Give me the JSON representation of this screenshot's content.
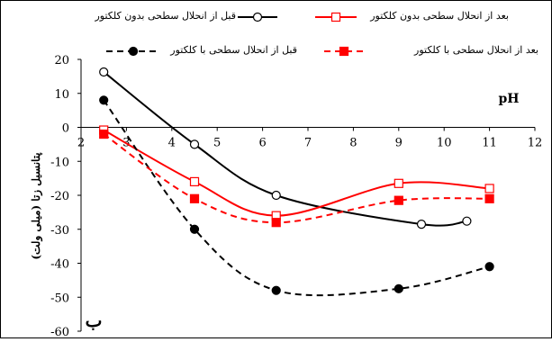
{
  "chart_data": {
    "type": "line",
    "ylabel": "پتانسیل زتا (میلی ولت)",
    "x_unit_label": "pH",
    "panel_label": "ب",
    "xlim": [
      2,
      12
    ],
    "ylim": [
      -60,
      20
    ],
    "x_ticks": [
      "2",
      "3",
      "4",
      "5",
      "6",
      "7",
      "8",
      "9",
      "10",
      "11",
      "12"
    ],
    "y_ticks": [
      "20",
      "10",
      "0",
      "-10",
      "-20",
      "-30",
      "-40",
      "-50",
      "-60"
    ],
    "grid": false,
    "legend_position": "top",
    "series": [
      {
        "name": "قبل از انحلال سطحی بدون کلکتور",
        "color": "#000000",
        "dash": "solid",
        "marker": "circle-open",
        "x": [
          2.5,
          4.5,
          6.3,
          9.5,
          10.5
        ],
        "y": [
          16.3,
          -5,
          -20,
          -28.5,
          -27.6
        ]
      },
      {
        "name": "بعد از انحلال سطحی بدون کلکتور",
        "color": "#ff0000",
        "dash": "solid",
        "marker": "square-open",
        "x": [
          2.5,
          4.5,
          6.3,
          9,
          11
        ],
        "y": [
          -0.8,
          -16,
          -26,
          -16.5,
          -18
        ]
      },
      {
        "name": "قبل از انحلال سطحی با کلکتور",
        "color": "#000000",
        "dash": "dashed",
        "marker": "circle-filled",
        "x": [
          2.5,
          4.5,
          6.3,
          9,
          11
        ],
        "y": [
          8,
          -30,
          -48,
          -47.5,
          -41
        ]
      },
      {
        "name": "بعد از انحلال سطحی با کلکتور",
        "color": "#ff0000",
        "dash": "dashed",
        "marker": "square-filled",
        "x": [
          2.5,
          4.5,
          6.3,
          9,
          11
        ],
        "y": [
          -2,
          -21,
          -28,
          -21.5,
          -21
        ]
      }
    ]
  }
}
